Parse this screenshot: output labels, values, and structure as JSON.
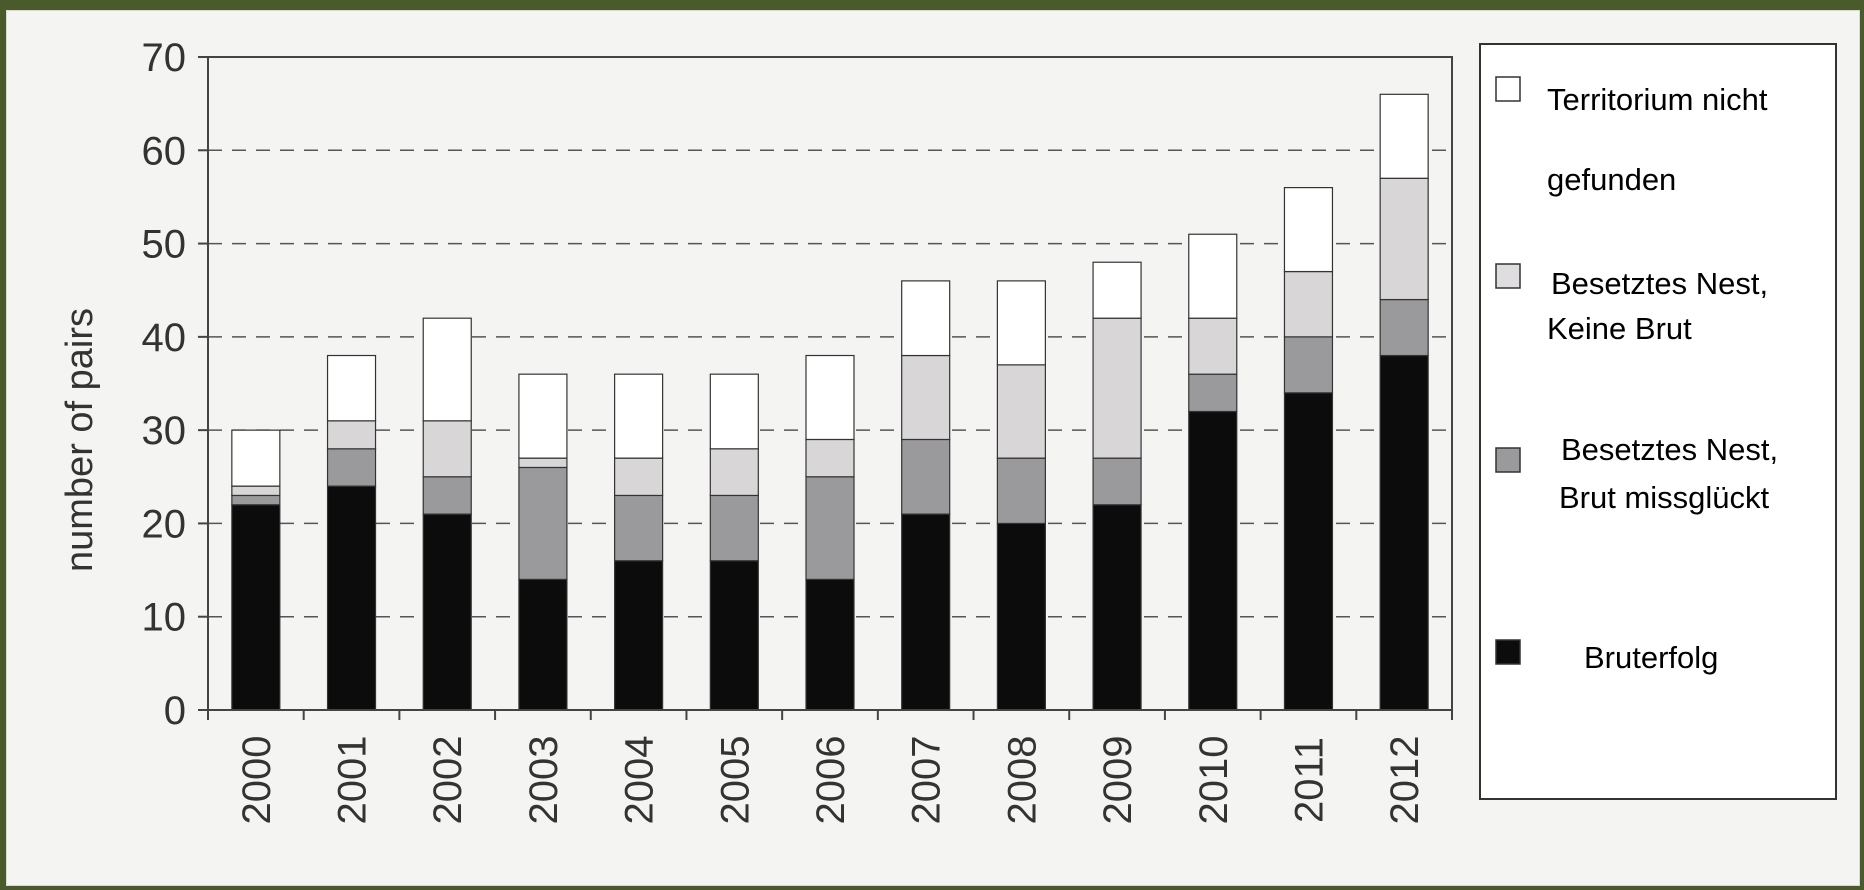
{
  "chart_data": {
    "type": "bar",
    "stacked": true,
    "ylabel": "number of pairs",
    "ylim": [
      0,
      70
    ],
    "yticks": [
      0,
      10,
      20,
      30,
      40,
      50,
      60,
      70
    ],
    "grid": "dashed horizontal",
    "legend_position": "right",
    "categories": [
      "2000",
      "2001",
      "2002",
      "2003",
      "2004",
      "2005",
      "2006",
      "2007",
      "2008",
      "2009",
      "2010",
      "2011",
      "2012"
    ],
    "series": [
      {
        "name": "Bruterfolg",
        "color": "#0c0c0c",
        "values": [
          22,
          24,
          21,
          14,
          16,
          16,
          14,
          21,
          20,
          22,
          32,
          34,
          38
        ]
      },
      {
        "name": "Besetztes Nest, Brut missglückt",
        "color": "#9a9a9c",
        "values": [
          1,
          4,
          4,
          12,
          7,
          7,
          11,
          8,
          7,
          5,
          4,
          6,
          6
        ]
      },
      {
        "name": "Besetztes Nest, Keine Brut",
        "color": "#d9d6d8",
        "values": [
          1,
          3,
          6,
          1,
          4,
          5,
          4,
          9,
          10,
          15,
          6,
          7,
          13
        ]
      },
      {
        "name": "Territorium nicht gefunden",
        "color": "#ffffff",
        "values": [
          6,
          7,
          11,
          9,
          9,
          8,
          9,
          8,
          9,
          6,
          9,
          9,
          9
        ]
      }
    ]
  },
  "legend": {
    "items": [
      {
        "line1": "Territorium nicht",
        "line2": "gefunden",
        "color": "#ffffff"
      },
      {
        "line1": "Besetztes Nest,",
        "line2": "Keine Brut",
        "color": "#e0dde0"
      },
      {
        "line1": "Besetztes Nest,",
        "line2": "Brut missglückt",
        "color": "#9a9a9c"
      },
      {
        "line1": "Bruterfolg",
        "line2": "",
        "color": "#0c0c0c"
      }
    ]
  }
}
